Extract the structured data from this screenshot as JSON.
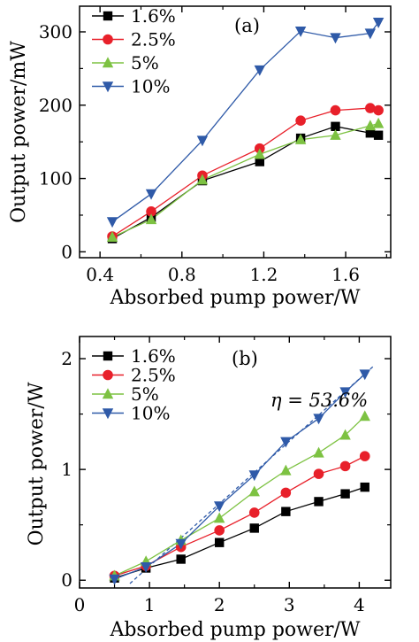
{
  "chart_data": [
    {
      "type": "line",
      "panel_label": "(a)",
      "xlabel": "Absorbed pump power/W",
      "ylabel": "Output power/mW",
      "xlim": [
        0.3,
        1.82
      ],
      "ylim": [
        -8,
        335
      ],
      "xticks": [
        0.4,
        0.8,
        1.2,
        1.6
      ],
      "xtick_labels": [
        "0.4",
        "0.8",
        "1.2",
        "1.6"
      ],
      "yticks": [
        0,
        100,
        200,
        300
      ],
      "ytick_labels": [
        "0",
        "100",
        "200",
        "300"
      ],
      "legend_position": "top-left",
      "series": [
        {
          "name": "1.6%",
          "color": "#000000",
          "marker": "square",
          "x": [
            0.46,
            0.65,
            0.9,
            1.18,
            1.38,
            1.55,
            1.72,
            1.76
          ],
          "y": [
            18,
            47,
            97,
            123,
            155,
            171,
            162,
            159
          ]
        },
        {
          "name": "2.5%",
          "color": "#e8202a",
          "marker": "circle",
          "x": [
            0.46,
            0.65,
            0.9,
            1.18,
            1.38,
            1.55,
            1.72,
            1.76
          ],
          "y": [
            21,
            55,
            104,
            141,
            179,
            193,
            196,
            193
          ]
        },
        {
          "name": "5%",
          "color": "#7dc242",
          "marker": "triangle-up",
          "x": [
            0.46,
            0.65,
            0.9,
            1.18,
            1.38,
            1.55,
            1.72,
            1.76
          ],
          "y": [
            20,
            44,
            98,
            133,
            153,
            159,
            172,
            175
          ]
        },
        {
          "name": "10%",
          "color": "#2f5aa8",
          "marker": "triangle-down",
          "x": [
            0.46,
            0.65,
            0.9,
            1.18,
            1.38,
            1.55,
            1.72,
            1.76
          ],
          "y": [
            41,
            79,
            152,
            248,
            301,
            292,
            298,
            313
          ]
        }
      ]
    },
    {
      "type": "line",
      "panel_label": "(b)",
      "xlabel": "Absorbed pump power/W",
      "ylabel": "Output power/W",
      "annotation": "η = 53.6%",
      "xlim": [
        0,
        4.45
      ],
      "ylim": [
        -0.07,
        2.2
      ],
      "xticks": [
        0,
        1,
        2,
        3,
        4
      ],
      "xtick_labels": [
        "0",
        "1",
        "2",
        "3",
        "4"
      ],
      "yticks": [
        0,
        1,
        2
      ],
      "ytick_labels": [
        "0",
        "1",
        "2"
      ],
      "legend_position": "top-left",
      "fit_line": {
        "x": [
          0.72,
          4.2
        ],
        "y": [
          -0.03,
          1.93
        ],
        "style": "dashed",
        "color": "#2f5aa8"
      },
      "series": [
        {
          "name": "1.6%",
          "color": "#000000",
          "marker": "square",
          "x": [
            0.5,
            0.95,
            1.45,
            2.0,
            2.5,
            2.95,
            3.42,
            3.8,
            4.08
          ],
          "y": [
            0.02,
            0.11,
            0.19,
            0.34,
            0.47,
            0.62,
            0.71,
            0.78,
            0.84
          ]
        },
        {
          "name": "2.5%",
          "color": "#e8202a",
          "marker": "circle",
          "x": [
            0.5,
            0.95,
            1.45,
            2.0,
            2.5,
            2.95,
            3.42,
            3.8,
            4.08
          ],
          "y": [
            0.04,
            0.13,
            0.3,
            0.45,
            0.61,
            0.79,
            0.96,
            1.03,
            1.12
          ]
        },
        {
          "name": "5%",
          "color": "#7dc242",
          "marker": "triangle-up",
          "x": [
            0.5,
            0.95,
            1.45,
            2.0,
            2.5,
            2.95,
            3.42,
            3.8,
            4.08
          ],
          "y": [
            0.04,
            0.17,
            0.36,
            0.56,
            0.8,
            0.99,
            1.15,
            1.31,
            1.48
          ]
        },
        {
          "name": "10%",
          "color": "#2f5aa8",
          "marker": "triangle-down",
          "x": [
            0.5,
            0.95,
            1.45,
            2.0,
            2.5,
            2.95,
            3.42,
            3.8,
            4.08
          ],
          "y": [
            0.01,
            0.12,
            0.33,
            0.67,
            0.95,
            1.25,
            1.46,
            1.7,
            1.86
          ]
        }
      ]
    }
  ]
}
